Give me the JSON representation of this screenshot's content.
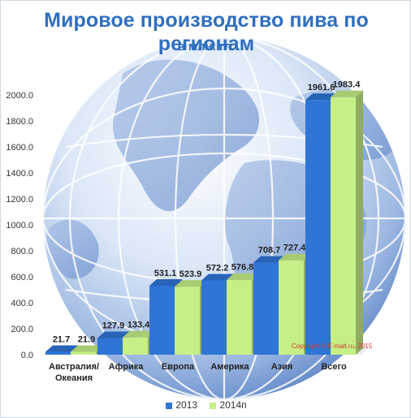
{
  "title": "Мировое производство пива по регионам",
  "subtitle": "в млн. гл.",
  "copyright": "Copyright © E-malt.ru, 2015",
  "chart_data": {
    "type": "bar",
    "categories": [
      "Австралия/\nОкеания",
      "Африка",
      "Европа",
      "Америка",
      "Азия",
      "Всего"
    ],
    "series": [
      {
        "name": "2013",
        "color": "#2e75d6",
        "values": [
          21.7,
          127.9,
          531.1,
          572.2,
          708.7,
          1961.6
        ]
      },
      {
        "name": "2014п",
        "color": "#c6ef87",
        "values": [
          21.9,
          133.4,
          523.9,
          576.8,
          727.4,
          1983.4
        ]
      }
    ],
    "yticks": [
      "0.0",
      "200.0",
      "400.0",
      "600.0",
      "800.0",
      "1000.0",
      "1200.0",
      "1400.0",
      "1600.0",
      "1800.0",
      "2000.0"
    ],
    "ylim": [
      0,
      2000
    ],
    "legend_position": "bottom",
    "background": "globe"
  }
}
